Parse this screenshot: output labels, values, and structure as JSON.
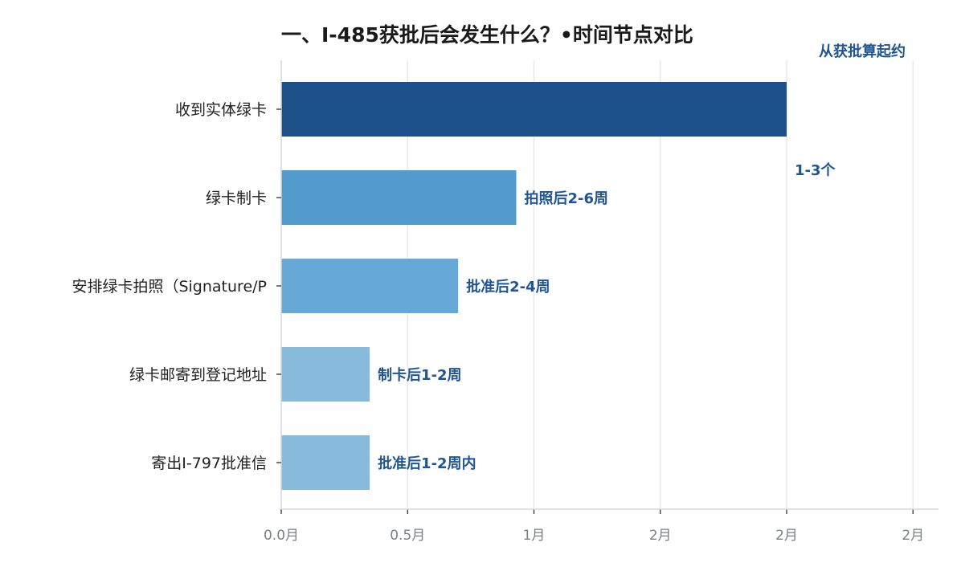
{
  "chart_data": {
    "type": "bar",
    "orientation": "horizontal",
    "title": "一、I-485获批后会发生什么？•时间节点对比",
    "categories": [
      "收到实体绿卡",
      "绿卡制卡",
      "安排绿卡拍照（Signature/P",
      "绿卡邮寄到登记地址",
      "寄出I-797批准信"
    ],
    "values": [
      2.0,
      0.93,
      0.7,
      0.35,
      0.35
    ],
    "bar_colors": [
      "#1b5089",
      "#529ccd",
      "#66a9d6",
      "#87bbdc",
      "#87bbdc"
    ],
    "data_labels": [
      "1-3个",
      "拍照后2-6周",
      "批准后2-4周",
      "制卡后1-2周",
      "批准后1-2周内"
    ],
    "corner_annotation": "从获批算起约",
    "x_ticks": [
      0,
      0.5,
      1,
      1.5,
      2,
      2.5
    ],
    "x_tick_labels": [
      "0.0月",
      "0.5月",
      "1月",
      "2月",
      "2月",
      "2月"
    ],
    "xlim": [
      0,
      2.6
    ],
    "xlabel": "",
    "ylabel": "",
    "grid": "vertical",
    "legend": "none"
  }
}
